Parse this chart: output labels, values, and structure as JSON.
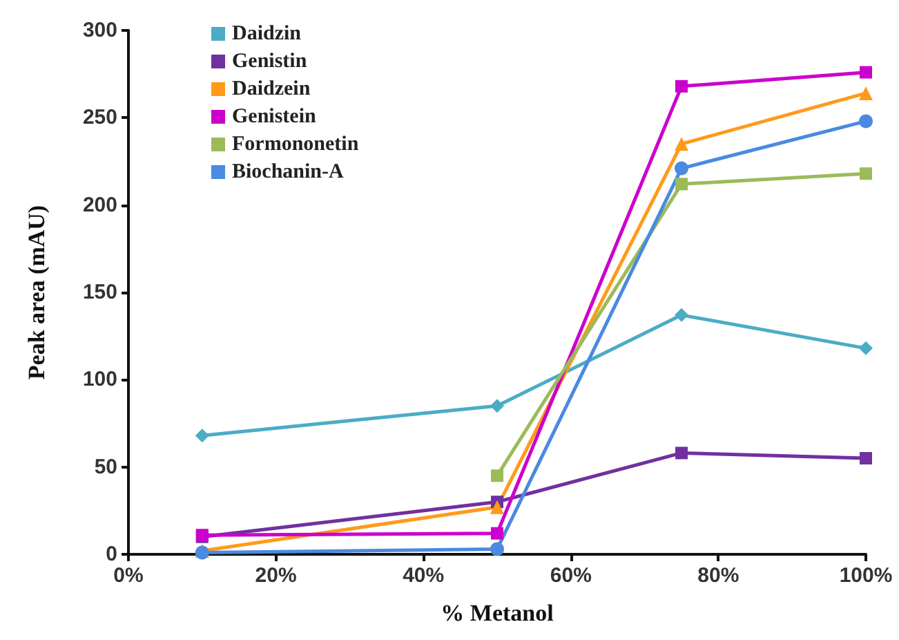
{
  "chart_data": {
    "type": "line",
    "xlabel": "% Metanol",
    "ylabel": "Peak area (mAU)",
    "x": [
      10,
      50,
      75,
      100
    ],
    "xlim": [
      0,
      100
    ],
    "xticks": [
      {
        "value": 0,
        "label": "0%"
      },
      {
        "value": 20,
        "label": "20%"
      },
      {
        "value": 40,
        "label": "40%"
      },
      {
        "value": 60,
        "label": "60%"
      },
      {
        "value": 80,
        "label": "80%"
      },
      {
        "value": 100,
        "label": "100%"
      }
    ],
    "ylim": [
      0,
      300
    ],
    "yticks": [
      0,
      50,
      100,
      150,
      200,
      250,
      300
    ],
    "grid": false,
    "legend": "top left",
    "series": [
      {
        "name": "Daidzin",
        "color": "#4bacc6",
        "marker": "diamond",
        "values": [
          68,
          85,
          137,
          118
        ]
      },
      {
        "name": "Genistin",
        "color": "#7030a0",
        "marker": "square",
        "values": [
          10,
          30,
          58,
          55
        ]
      },
      {
        "name": "Daidzein",
        "color": "#ff9a1a",
        "marker": "triangle",
        "values": [
          2,
          27,
          235,
          264
        ]
      },
      {
        "name": "Genistein",
        "color": "#cc00cc",
        "marker": "square",
        "values": [
          11,
          12,
          268,
          276
        ]
      },
      {
        "name": "Formononetin",
        "color": "#9bbb59",
        "marker": "square",
        "values": [
          null,
          45,
          212,
          218
        ]
      },
      {
        "name": "Biochanin-A",
        "color": "#4a8ae0",
        "marker": "circle",
        "values": [
          1,
          3,
          221,
          248
        ]
      }
    ]
  }
}
